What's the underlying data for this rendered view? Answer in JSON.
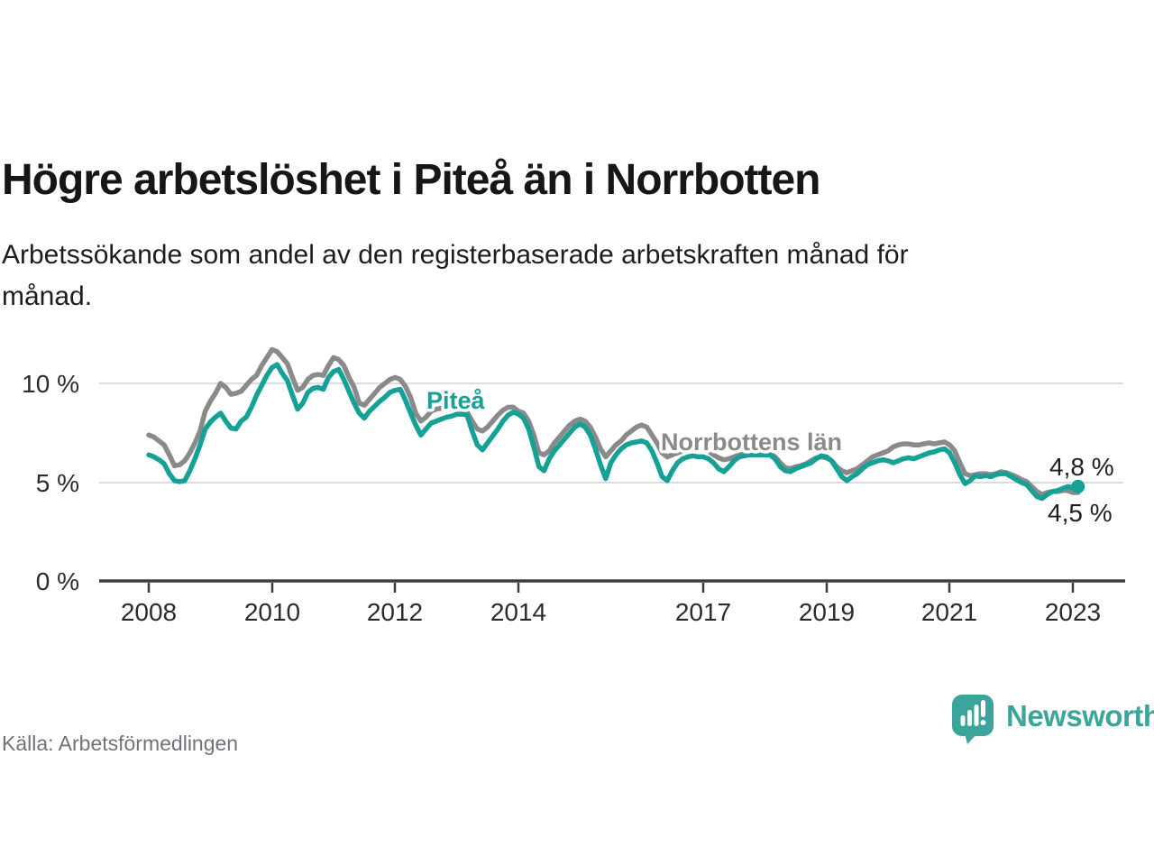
{
  "header": {
    "title": "Högre arbetslöshet i Piteå än i Norrbotten",
    "subtitle": "Arbetssökande som andel av den registerbaserade arbetskraften månad för månad."
  },
  "chart_data": {
    "type": "line",
    "title": "Högre arbetslöshet i Piteå än i Norrbotten",
    "subtitle": "Arbetssökande som andel av den registerbaserade arbetskraften månad för månad.",
    "x_unit": "month",
    "x_start": "2008-01",
    "x_end": "2023-02",
    "ylim": [
      0,
      12
    ],
    "grid": "horizontal",
    "legend_position": "inline-labels",
    "yticks": [
      {
        "value": 0,
        "label": "0 %"
      },
      {
        "value": 5,
        "label": "5 %"
      },
      {
        "value": 10,
        "label": "10 %"
      }
    ],
    "xticks": [
      {
        "value": 2008,
        "label": "2008"
      },
      {
        "value": 2010,
        "label": "2010"
      },
      {
        "value": 2012,
        "label": "2012"
      },
      {
        "value": 2014,
        "label": "2014"
      },
      {
        "value": 2017,
        "label": "2017"
      },
      {
        "value": 2019,
        "label": "2019"
      },
      {
        "value": 2021,
        "label": "2021"
      },
      {
        "value": 2023,
        "label": "2023"
      }
    ],
    "series": [
      {
        "name": "Norrbottens län",
        "color": "#8a8a8a",
        "end_dot": false,
        "end_value_label": "4,5 %",
        "values": [
          7.4,
          7.3,
          7.1,
          6.9,
          6.4,
          5.85,
          5.9,
          6.1,
          6.5,
          7.0,
          7.6,
          8.6,
          9.1,
          9.5,
          10.0,
          9.8,
          9.45,
          9.5,
          9.6,
          9.9,
          10.2,
          10.4,
          10.9,
          11.3,
          11.7,
          11.6,
          11.3,
          11.0,
          10.3,
          9.65,
          9.8,
          10.2,
          10.4,
          10.45,
          10.4,
          10.9,
          11.3,
          11.2,
          10.9,
          10.3,
          9.8,
          9.0,
          8.9,
          9.2,
          9.5,
          9.8,
          10.0,
          10.2,
          10.3,
          10.2,
          9.85,
          9.3,
          8.5,
          8.1,
          8.3,
          8.6,
          8.7,
          8.75,
          8.8,
          8.85,
          8.9,
          8.8,
          8.55,
          8.1,
          7.7,
          7.6,
          7.8,
          8.1,
          8.4,
          8.65,
          8.8,
          8.8,
          8.6,
          8.5,
          8.1,
          7.4,
          6.5,
          6.4,
          6.6,
          7.0,
          7.3,
          7.6,
          7.9,
          8.1,
          8.2,
          8.1,
          7.8,
          7.3,
          6.7,
          6.3,
          6.6,
          6.9,
          7.1,
          7.4,
          7.6,
          7.8,
          7.9,
          7.8,
          7.4,
          7.0,
          6.5,
          6.3,
          6.4,
          6.5,
          6.6,
          6.65,
          6.7,
          6.7,
          6.7,
          6.6,
          6.4,
          6.25,
          6.15,
          6.2,
          6.3,
          6.4,
          6.45,
          6.5,
          6.55,
          6.55,
          6.55,
          6.5,
          6.3,
          6.0,
          5.75,
          5.7,
          5.8,
          5.85,
          5.95,
          6.1,
          6.25,
          6.3,
          6.25,
          6.1,
          5.8,
          5.6,
          5.5,
          5.6,
          5.7,
          5.9,
          6.1,
          6.3,
          6.4,
          6.5,
          6.6,
          6.8,
          6.9,
          6.95,
          6.95,
          6.9,
          6.9,
          6.95,
          7.0,
          6.95,
          7.0,
          7.05,
          6.9,
          6.6,
          6.0,
          5.45,
          5.35,
          5.4,
          5.45,
          5.45,
          5.4,
          5.45,
          5.55,
          5.5,
          5.4,
          5.3,
          5.15,
          5.05,
          4.8,
          4.55,
          4.4,
          4.5,
          4.55,
          4.55,
          4.6,
          4.6,
          4.5,
          4.5
        ]
      },
      {
        "name": "Piteå",
        "color": "#15a195",
        "end_dot": true,
        "end_value_label": "4,8 %",
        "values": [
          6.4,
          6.3,
          6.15,
          5.95,
          5.45,
          5.1,
          5.05,
          5.1,
          5.6,
          6.2,
          6.9,
          7.7,
          8.05,
          8.3,
          8.5,
          8.1,
          7.75,
          7.7,
          8.1,
          8.3,
          8.8,
          9.4,
          9.9,
          10.4,
          10.8,
          10.95,
          10.5,
          10.15,
          9.4,
          8.7,
          9.0,
          9.55,
          9.75,
          9.8,
          9.7,
          10.3,
          10.6,
          10.7,
          10.2,
          9.6,
          9.0,
          8.5,
          8.25,
          8.6,
          8.85,
          9.1,
          9.3,
          9.55,
          9.65,
          9.7,
          9.15,
          8.5,
          7.9,
          7.4,
          7.7,
          8.0,
          8.1,
          8.2,
          8.3,
          8.35,
          8.45,
          8.45,
          8.4,
          7.6,
          6.9,
          6.65,
          7.0,
          7.35,
          7.7,
          8.1,
          8.4,
          8.55,
          8.45,
          8.25,
          7.7,
          6.8,
          5.8,
          5.6,
          6.2,
          6.6,
          6.9,
          7.2,
          7.5,
          7.8,
          7.95,
          7.8,
          7.4,
          6.7,
          5.9,
          5.2,
          6.0,
          6.4,
          6.7,
          6.9,
          7.0,
          7.05,
          7.1,
          7.0,
          6.6,
          6.0,
          5.3,
          5.1,
          5.6,
          6.0,
          6.2,
          6.3,
          6.35,
          6.3,
          6.3,
          6.2,
          6.0,
          5.7,
          5.55,
          5.8,
          6.1,
          6.3,
          6.35,
          6.4,
          6.4,
          6.4,
          6.4,
          6.4,
          6.2,
          5.8,
          5.6,
          5.55,
          5.7,
          5.8,
          5.9,
          6.0,
          6.2,
          6.35,
          6.3,
          6.1,
          5.7,
          5.3,
          5.1,
          5.3,
          5.45,
          5.7,
          5.9,
          6.0,
          6.1,
          6.15,
          6.1,
          6.0,
          6.1,
          6.2,
          6.25,
          6.2,
          6.3,
          6.4,
          6.5,
          6.55,
          6.65,
          6.7,
          6.5,
          6.0,
          5.4,
          4.95,
          5.1,
          5.35,
          5.3,
          5.35,
          5.3,
          5.4,
          5.45,
          5.45,
          5.3,
          5.15,
          5.0,
          4.9,
          4.6,
          4.3,
          4.2,
          4.4,
          4.55,
          4.6,
          4.7,
          4.8,
          4.75,
          4.8
        ]
      }
    ]
  },
  "footer": {
    "source": "Källa: Arbetsförmedlingen",
    "brand": "Newsworthy"
  },
  "colors": {
    "accent_teal": "#15a195",
    "series_gray": "#8a8a8a",
    "logo_teal": "#3ba49b",
    "gridline": "#dcdcdc"
  }
}
